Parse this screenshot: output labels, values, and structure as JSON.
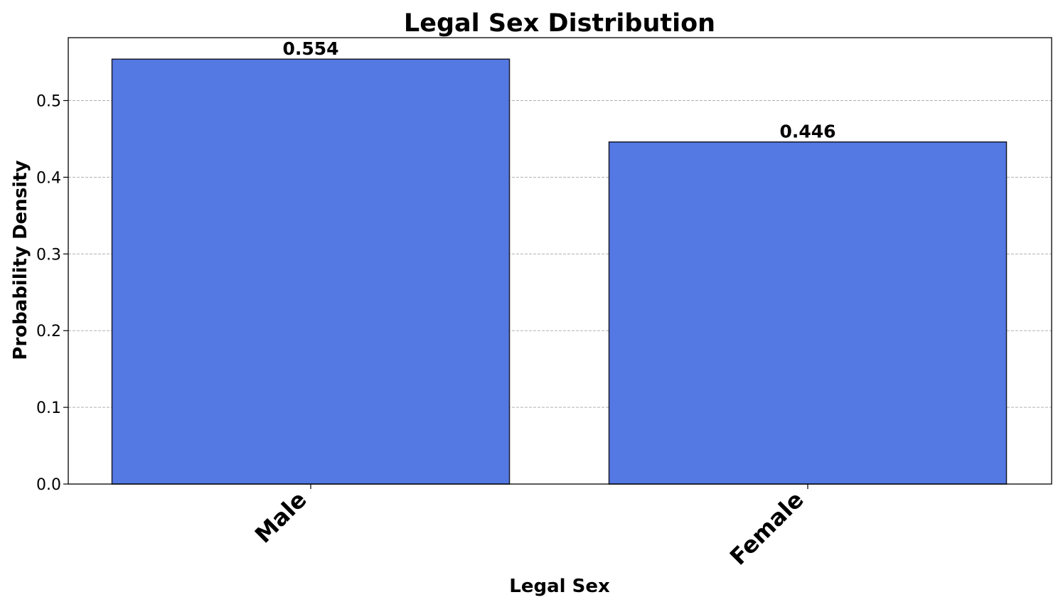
{
  "chart_data": {
    "type": "bar",
    "title": "Legal Sex Distribution",
    "xlabel": "Legal Sex",
    "ylabel": "Probability Density",
    "categories": [
      "Male",
      "Female"
    ],
    "values": [
      0.554,
      0.446
    ],
    "value_labels": [
      "0.554",
      "0.446"
    ],
    "ylim": [
      0,
      0.582
    ],
    "yticks": [
      0.0,
      0.1,
      0.2,
      0.3,
      0.4,
      0.5
    ],
    "ytick_labels": [
      "0.0",
      "0.1",
      "0.2",
      "0.3",
      "0.4",
      "0.5"
    ],
    "grid": "y, dashed",
    "legend": "none",
    "colors": {
      "bar": "#5479e3",
      "bar_edge": "#1a1a2e",
      "grid": "#b0b0b0"
    }
  }
}
